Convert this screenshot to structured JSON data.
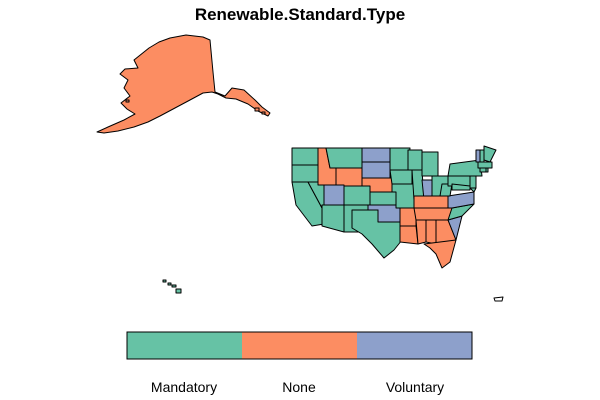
{
  "map": {
    "title": "Renewable.Standard.Type",
    "legend": {
      "categories": [
        {
          "label": "Mandatory",
          "color": "#66C2A5"
        },
        {
          "label": "None",
          "color": "#FC8D62"
        },
        {
          "label": "Voluntary",
          "color": "#8DA0CB"
        }
      ]
    },
    "regions": {
      "alaska": "None",
      "hawaii": "Mandatory",
      "states": [
        {
          "name": "Washington",
          "category": "Mandatory"
        },
        {
          "name": "Oregon",
          "category": "Mandatory"
        },
        {
          "name": "California",
          "category": "Mandatory"
        },
        {
          "name": "Nevada",
          "category": "Mandatory"
        },
        {
          "name": "Idaho",
          "category": "None"
        },
        {
          "name": "Montana",
          "category": "Mandatory"
        },
        {
          "name": "Wyoming",
          "category": "None"
        },
        {
          "name": "Utah",
          "category": "Voluntary"
        },
        {
          "name": "Arizona",
          "category": "Mandatory"
        },
        {
          "name": "Colorado",
          "category": "Mandatory"
        },
        {
          "name": "New Mexico",
          "category": "Mandatory"
        },
        {
          "name": "North Dakota",
          "category": "Voluntary"
        },
        {
          "name": "South Dakota",
          "category": "Voluntary"
        },
        {
          "name": "Nebraska",
          "category": "None"
        },
        {
          "name": "Kansas",
          "category": "Mandatory"
        },
        {
          "name": "Oklahoma",
          "category": "Voluntary"
        },
        {
          "name": "Texas",
          "category": "Mandatory"
        },
        {
          "name": "Minnesota",
          "category": "Mandatory"
        },
        {
          "name": "Iowa",
          "category": "Mandatory"
        },
        {
          "name": "Missouri",
          "category": "Mandatory"
        },
        {
          "name": "Arkansas",
          "category": "None"
        },
        {
          "name": "Louisiana",
          "category": "None"
        },
        {
          "name": "Wisconsin",
          "category": "Mandatory"
        },
        {
          "name": "Illinois",
          "category": "Mandatory"
        },
        {
          "name": "Michigan",
          "category": "Mandatory"
        },
        {
          "name": "Indiana",
          "category": "Voluntary"
        },
        {
          "name": "Ohio",
          "category": "Mandatory"
        },
        {
          "name": "Kentucky",
          "category": "None"
        },
        {
          "name": "Tennessee",
          "category": "None"
        },
        {
          "name": "Mississippi",
          "category": "None"
        },
        {
          "name": "Alabama",
          "category": "None"
        },
        {
          "name": "Georgia",
          "category": "None"
        },
        {
          "name": "Florida",
          "category": "None"
        },
        {
          "name": "South Carolina",
          "category": "Voluntary"
        },
        {
          "name": "North Carolina",
          "category": "Mandatory"
        },
        {
          "name": "Virginia",
          "category": "Voluntary"
        },
        {
          "name": "West Virginia",
          "category": "Mandatory"
        },
        {
          "name": "Pennsylvania",
          "category": "Mandatory"
        },
        {
          "name": "New York",
          "category": "Mandatory"
        },
        {
          "name": "New Jersey",
          "category": "Mandatory"
        },
        {
          "name": "Delaware",
          "category": "Mandatory"
        },
        {
          "name": "Maryland",
          "category": "Mandatory"
        },
        {
          "name": "Connecticut",
          "category": "Mandatory"
        },
        {
          "name": "Rhode Island",
          "category": "Mandatory"
        },
        {
          "name": "Massachusetts",
          "category": "Mandatory"
        },
        {
          "name": "Vermont",
          "category": "Voluntary"
        },
        {
          "name": "New Hampshire",
          "category": "Mandatory"
        },
        {
          "name": "Maine",
          "category": "Mandatory"
        }
      ]
    }
  }
}
